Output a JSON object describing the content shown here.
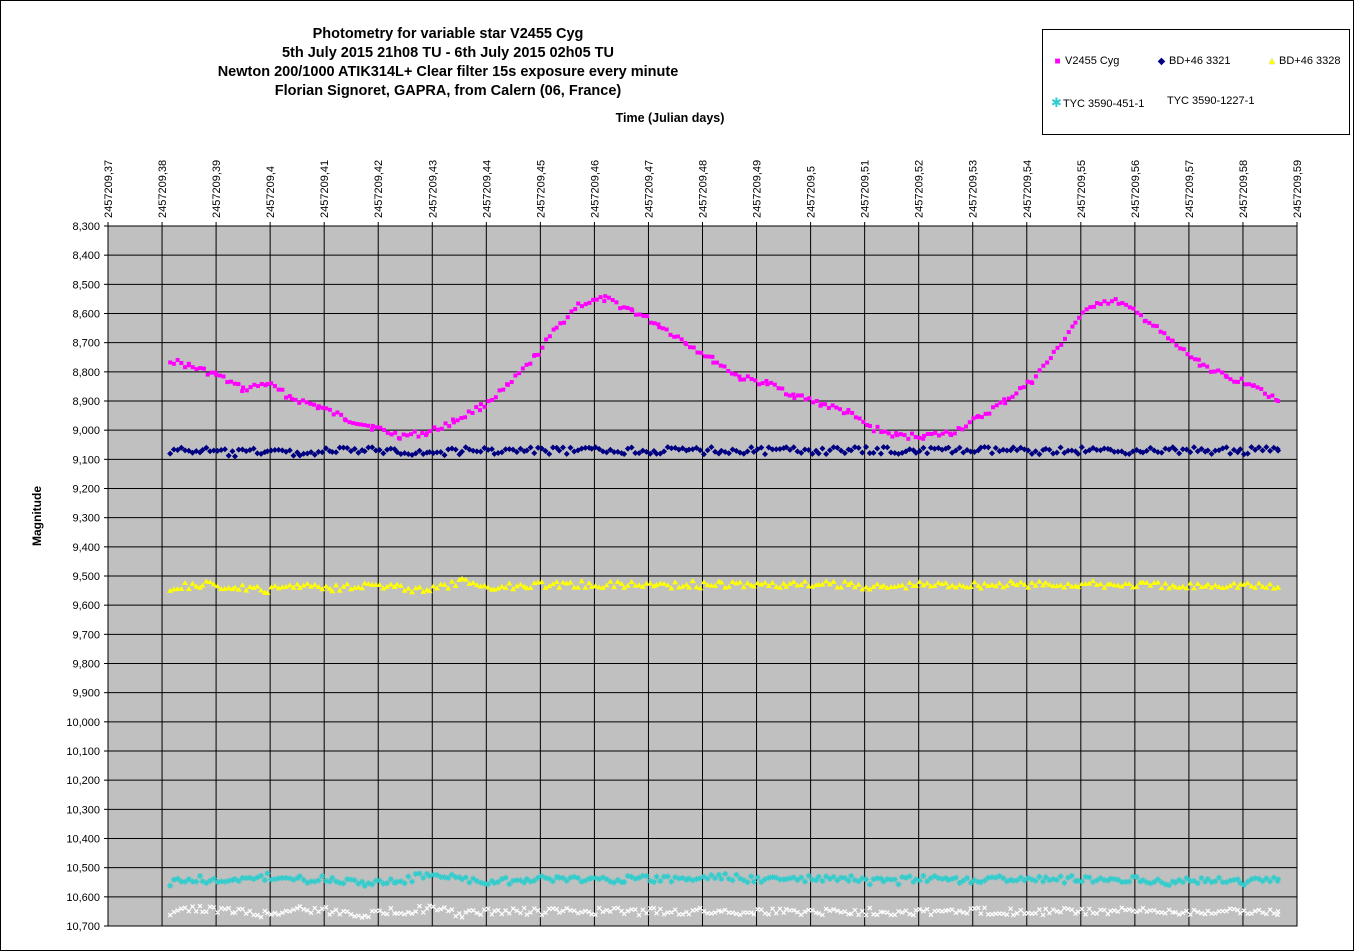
{
  "chart_data": {
    "type": "scatter",
    "title_lines": [
      "Photometry for variable star V2455 Cyg",
      "5th July 2015 21h08 TU - 6th July 2015 02h05 TU",
      "Newton 200/1000 ATIK314L+ Clear filter 15s exposure every minute",
      "Florian Signoret, GAPRA, from Calern (06, France)"
    ],
    "xlabel": "Time (Julian days)",
    "ylabel": "Magnitude",
    "xlim": [
      2457209.37,
      2457209.59
    ],
    "ylim": [
      8.3,
      10.7
    ],
    "y_inverted": true,
    "x_ticks": [
      "2457209,37",
      "2457209,38",
      "2457209,39",
      "2457209,4",
      "2457209,41",
      "2457209,42",
      "2457209,43",
      "2457209,44",
      "2457209,45",
      "2457209,46",
      "2457209,47",
      "2457209,48",
      "2457209,49",
      "2457209,5",
      "2457209,51",
      "2457209,52",
      "2457209,53",
      "2457209,54",
      "2457209,55",
      "2457209,56",
      "2457209,57",
      "2457209,58",
      "2457209,59"
    ],
    "y_ticks": [
      "8,300",
      "8,400",
      "8,500",
      "8,600",
      "8,700",
      "8,800",
      "8,900",
      "9,000",
      "9,100",
      "9,200",
      "9,300",
      "9,400",
      "9,500",
      "9,600",
      "9,700",
      "9,800",
      "9,900",
      "10,000",
      "10,100",
      "10,200",
      "10,300",
      "10,400",
      "10,500",
      "10,600",
      "10,700"
    ],
    "x_axis_position": "top",
    "grid": true,
    "plot_background": "#c0c0c0",
    "legend_position": "top-right",
    "series": [
      {
        "name": "V2455 Cyg",
        "color": "#ff00ff",
        "marker": "square",
        "x": [
          2457209.3815,
          2457209.385,
          2457209.39,
          2457209.395,
          2457209.3995,
          2457209.404,
          2457209.409,
          2457209.414,
          2457209.419,
          2457209.424,
          2457209.429,
          2457209.434,
          2457209.439,
          2457209.444,
          2457209.449,
          2457209.453,
          2457209.457,
          2457209.462,
          2457209.467,
          2457209.472,
          2457209.477,
          2457209.482,
          2457209.487,
          2457209.492,
          2457209.497,
          2457209.502,
          2457209.507,
          2457209.511,
          2457209.516,
          2457209.521,
          2457209.526,
          2457209.531,
          2457209.536,
          2457209.541,
          2457209.545,
          2457209.549,
          2457209.553,
          2457209.557,
          2457209.562,
          2457209.567,
          2457209.572,
          2457209.577,
          2457209.582,
          2457209.5865
        ],
        "y": [
          8.76,
          8.78,
          8.81,
          8.86,
          8.84,
          8.89,
          8.92,
          8.96,
          8.99,
          9.02,
          9.01,
          8.97,
          8.92,
          8.85,
          8.75,
          8.65,
          8.57,
          8.55,
          8.59,
          8.64,
          8.7,
          8.76,
          8.82,
          8.84,
          8.88,
          8.91,
          8.94,
          8.99,
          9.02,
          9.02,
          9.01,
          8.96,
          8.9,
          8.83,
          8.74,
          8.63,
          8.56,
          8.56,
          8.62,
          8.7,
          8.77,
          8.82,
          8.84,
          8.9
        ]
      },
      {
        "name": "BD+46 3321",
        "color": "#000080",
        "marker": "diamond",
        "x": [
          2457209.3815,
          2457209.3875,
          2457209.3935,
          2457209.3995,
          2457209.4055,
          2457209.4115,
          2457209.4175,
          2457209.4235,
          2457209.4295,
          2457209.4355,
          2457209.4415,
          2457209.4475,
          2457209.4535,
          2457209.4595,
          2457209.4655,
          2457209.4715,
          2457209.4775,
          2457209.4835,
          2457209.4895,
          2457209.4955,
          2457209.5015,
          2457209.5075,
          2457209.5135,
          2457209.5195,
          2457209.5255,
          2457209.5315,
          2457209.5375,
          2457209.5435,
          2457209.5495,
          2457209.5555,
          2457209.5615,
          2457209.5675,
          2457209.5735,
          2457209.5795,
          2457209.5865
        ],
        "y": [
          9.07,
          9.07,
          9.08,
          9.07,
          9.08,
          9.07,
          9.07,
          9.07,
          9.08,
          9.07,
          9.07,
          9.07,
          9.07,
          9.07,
          9.07,
          9.07,
          9.07,
          9.07,
          9.07,
          9.07,
          9.07,
          9.07,
          9.07,
          9.07,
          9.07,
          9.07,
          9.07,
          9.07,
          9.07,
          9.07,
          9.07,
          9.07,
          9.07,
          9.07,
          9.07
        ]
      },
      {
        "name": "BD+46 3328",
        "color": "#ffff00",
        "marker": "triangle",
        "x": [
          2457209.3815,
          2457209.3875,
          2457209.3935,
          2457209.3995,
          2457209.4055,
          2457209.4115,
          2457209.4175,
          2457209.4235,
          2457209.4295,
          2457209.4355,
          2457209.4415,
          2457209.4475,
          2457209.4535,
          2457209.4595,
          2457209.4655,
          2457209.4715,
          2457209.4775,
          2457209.4835,
          2457209.4895,
          2457209.4955,
          2457209.5015,
          2457209.5075,
          2457209.5135,
          2457209.5195,
          2457209.5255,
          2457209.5315,
          2457209.5375,
          2457209.5435,
          2457209.5495,
          2457209.5555,
          2457209.5615,
          2457209.5675,
          2457209.5735,
          2457209.5795,
          2457209.5865
        ],
        "y": [
          9.54,
          9.53,
          9.54,
          9.55,
          9.53,
          9.54,
          9.53,
          9.54,
          9.55,
          9.52,
          9.54,
          9.53,
          9.53,
          9.53,
          9.53,
          9.53,
          9.53,
          9.53,
          9.53,
          9.53,
          9.53,
          9.53,
          9.54,
          9.53,
          9.53,
          9.53,
          9.53,
          9.53,
          9.53,
          9.53,
          9.53,
          9.54,
          9.53,
          9.53,
          9.54
        ]
      },
      {
        "name": "TYC 3590-451-1",
        "color": "#33cccc",
        "marker": "asterisk",
        "x": [
          2457209.3815,
          2457209.3875,
          2457209.3935,
          2457209.3995,
          2457209.4055,
          2457209.4115,
          2457209.4175,
          2457209.4235,
          2457209.4295,
          2457209.4355,
          2457209.4415,
          2457209.4475,
          2457209.4535,
          2457209.4595,
          2457209.4655,
          2457209.4715,
          2457209.4775,
          2457209.4835,
          2457209.4895,
          2457209.4955,
          2457209.5015,
          2457209.5075,
          2457209.5135,
          2457209.5195,
          2457209.5255,
          2457209.5315,
          2457209.5375,
          2457209.5435,
          2457209.5495,
          2457209.5555,
          2457209.5615,
          2457209.5675,
          2457209.5735,
          2457209.5795,
          2457209.5865
        ],
        "y": [
          10.55,
          10.54,
          10.55,
          10.53,
          10.54,
          10.54,
          10.55,
          10.55,
          10.52,
          10.54,
          10.55,
          10.54,
          10.54,
          10.54,
          10.54,
          10.54,
          10.54,
          10.53,
          10.54,
          10.54,
          10.54,
          10.54,
          10.55,
          10.54,
          10.54,
          10.54,
          10.54,
          10.54,
          10.54,
          10.54,
          10.54,
          10.55,
          10.54,
          10.55,
          10.54
        ]
      },
      {
        "name": "TYC 3590-1227-1",
        "color": "#ffffff",
        "marker": "x",
        "x": [
          2457209.3815,
          2457209.3875,
          2457209.3935,
          2457209.3995,
          2457209.4055,
          2457209.4115,
          2457209.4175,
          2457209.4235,
          2457209.4295,
          2457209.4355,
          2457209.4415,
          2457209.4475,
          2457209.4535,
          2457209.4595,
          2457209.4655,
          2457209.4715,
          2457209.4775,
          2457209.4835,
          2457209.4895,
          2457209.4955,
          2457209.5015,
          2457209.5075,
          2457209.5135,
          2457209.5195,
          2457209.5255,
          2457209.5315,
          2457209.5375,
          2457209.5435,
          2457209.5495,
          2457209.5555,
          2457209.5615,
          2457209.5675,
          2457209.5735,
          2457209.5795,
          2457209.5865
        ],
        "y": [
          10.65,
          10.64,
          10.65,
          10.66,
          10.64,
          10.65,
          10.66,
          10.65,
          10.64,
          10.66,
          10.65,
          10.65,
          10.65,
          10.65,
          10.65,
          10.65,
          10.65,
          10.65,
          10.65,
          10.65,
          10.65,
          10.65,
          10.65,
          10.65,
          10.65,
          10.65,
          10.65,
          10.65,
          10.65,
          10.65,
          10.65,
          10.65,
          10.65,
          10.65,
          10.65
        ]
      }
    ]
  }
}
